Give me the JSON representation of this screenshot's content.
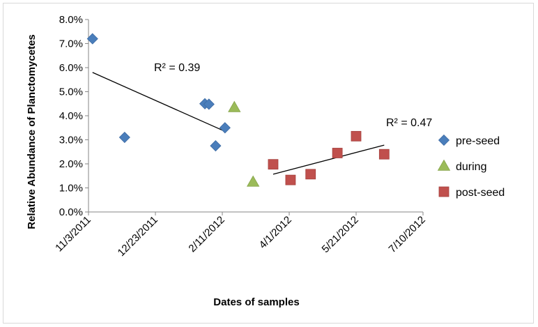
{
  "chart_data": {
    "type": "scatter",
    "title": "",
    "xlabel": "Dates of samples",
    "ylabel": "Relative Abundance of Planctomycetes",
    "x_axis": {
      "type": "date",
      "min": "2011-11-03",
      "max": "2012-07-10",
      "ticks": [
        "11/3/2011",
        "12/23/2011",
        "2/11/2012",
        "4/1/2012",
        "5/21/2012",
        "7/10/2012"
      ]
    },
    "y_axis": {
      "min": 0,
      "max": 0.08,
      "ticks": [
        "0.0%",
        "1.0%",
        "2.0%",
        "3.0%",
        "4.0%",
        "5.0%",
        "6.0%",
        "7.0%",
        "8.0%"
      ]
    },
    "grid": false,
    "legend_position": "right",
    "series": [
      {
        "name": "pre-seed",
        "marker": "diamond",
        "color": "#4a7ebb",
        "points": [
          {
            "x": "2011-11-06",
            "y": 0.072
          },
          {
            "x": "2011-11-30",
            "y": 0.031
          },
          {
            "x": "2012-01-29",
            "y": 0.045
          },
          {
            "x": "2012-02-01",
            "y": 0.0448
          },
          {
            "x": "2012-02-06",
            "y": 0.0275
          },
          {
            "x": "2012-02-13",
            "y": 0.035
          }
        ]
      },
      {
        "name": "during",
        "marker": "triangle",
        "color": "#9bbb59",
        "points": [
          {
            "x": "2012-02-20",
            "y": 0.0435
          },
          {
            "x": "2012-03-05",
            "y": 0.0125
          }
        ]
      },
      {
        "name": "post-seed",
        "marker": "square",
        "color": "#c0504d",
        "points": [
          {
            "x": "2012-03-20",
            "y": 0.0198
          },
          {
            "x": "2012-04-02",
            "y": 0.0133
          },
          {
            "x": "2012-04-17",
            "y": 0.0157
          },
          {
            "x": "2012-05-07",
            "y": 0.0245
          },
          {
            "x": "2012-05-21",
            "y": 0.0315
          },
          {
            "x": "2012-06-11",
            "y": 0.024
          }
        ]
      }
    ],
    "trendlines": [
      {
        "series": "pre-seed",
        "from": {
          "x": "2011-11-06",
          "y": 0.058
        },
        "to": {
          "x": "2012-02-13",
          "y": 0.0335
        },
        "r2_label": "R² = 0.39"
      },
      {
        "series": "post-seed",
        "from": {
          "x": "2012-03-20",
          "y": 0.0157
        },
        "to": {
          "x": "2012-06-11",
          "y": 0.0278
        },
        "r2_label": "R² = 0.47"
      }
    ]
  }
}
